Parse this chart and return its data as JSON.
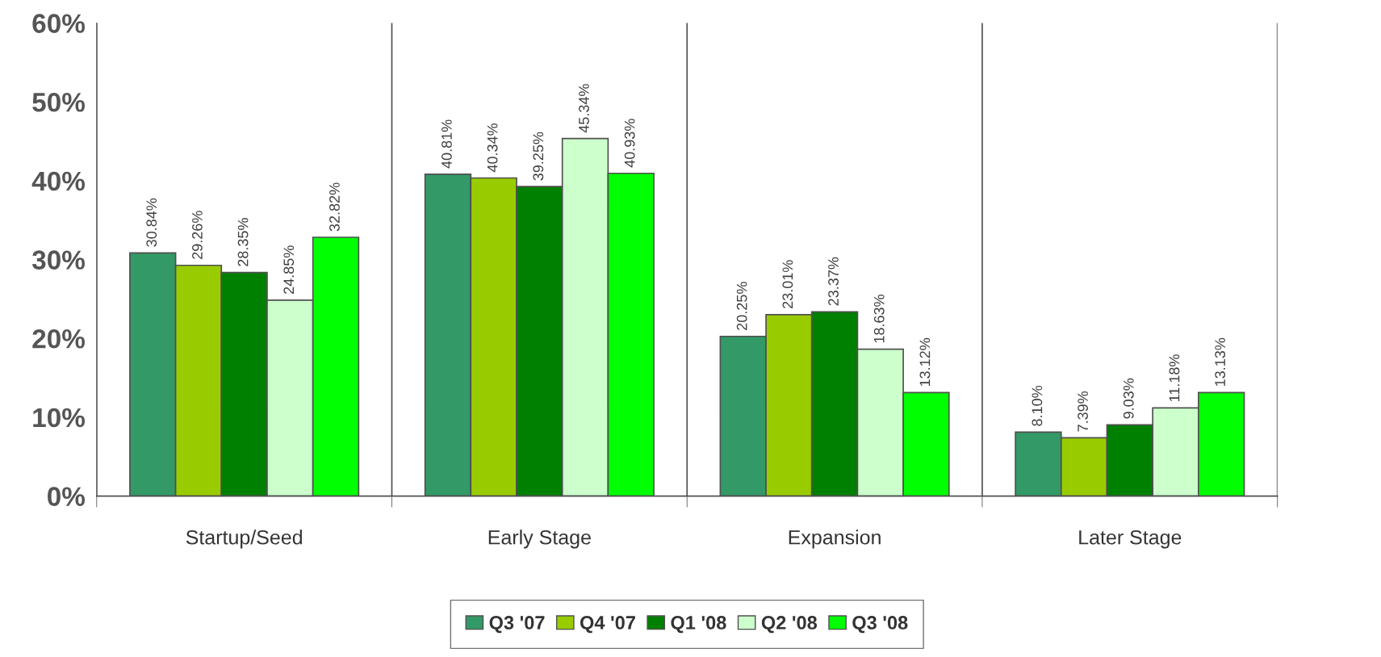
{
  "chart_data": {
    "type": "bar",
    "categories": [
      "Startup/Seed",
      "Early Stage",
      "Expansion",
      "Later Stage"
    ],
    "series": [
      {
        "name": "Q3 '07",
        "color": "#339966",
        "values": [
          30.84,
          40.81,
          20.25,
          8.1
        ],
        "value_labels": [
          "30.84%",
          "40.81%",
          "20.25%",
          "8.10%"
        ]
      },
      {
        "name": "Q4 '07",
        "color": "#99cc00",
        "values": [
          29.26,
          40.34,
          23.01,
          7.39
        ],
        "value_labels": [
          "29.26%",
          "40.34%",
          "23.01%",
          "7.39%"
        ]
      },
      {
        "name": "Q1 '08",
        "color": "#008000",
        "values": [
          28.35,
          39.25,
          23.37,
          9.03
        ],
        "value_labels": [
          "28.35%",
          "39.25%",
          "23.37%",
          "9.03%"
        ]
      },
      {
        "name": "Q2 '08",
        "color": "#ccffcc",
        "values": [
          24.85,
          45.34,
          18.63,
          11.18
        ],
        "value_labels": [
          "24.85%",
          "45.34%",
          "18.63%",
          "11.18%"
        ]
      },
      {
        "name": "Q3 '08",
        "color": "#00ff00",
        "values": [
          32.82,
          40.93,
          13.12,
          13.13
        ],
        "value_labels": [
          "32.82%",
          "40.93%",
          "13.12%",
          "13.13%"
        ]
      }
    ],
    "ylim": [
      0,
      60
    ],
    "yticks": [
      {
        "value": 0,
        "label": "0%"
      },
      {
        "value": 10,
        "label": "10%"
      },
      {
        "value": 20,
        "label": "20%"
      },
      {
        "value": 30,
        "label": "30%"
      },
      {
        "value": 40,
        "label": "40%"
      },
      {
        "value": 50,
        "label": "50%"
      },
      {
        "value": 60,
        "label": "60%"
      }
    ],
    "grid": "x",
    "legend": "bottom"
  }
}
